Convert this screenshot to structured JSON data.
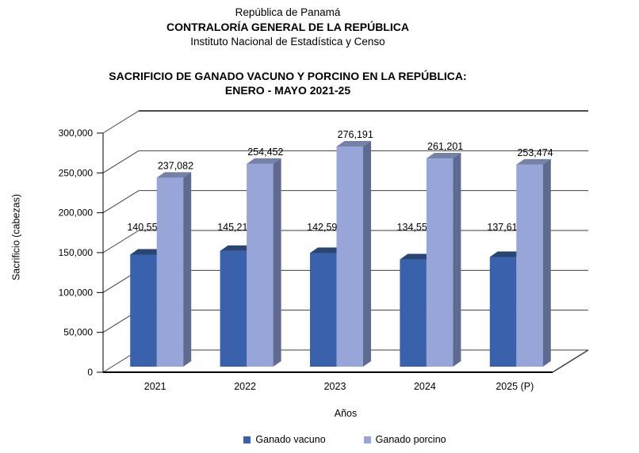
{
  "header": {
    "line1": "República de Panamá",
    "line2": "CONTRALORÍA GENERAL DE LA REPÚBLICA",
    "line3": "Instituto Nacional de Estadística y Censo"
  },
  "chart_data": {
    "type": "bar",
    "variant": "3d-column",
    "title": "SACRIFICIO DE GANADO VACUNO Y PORCINO EN LA REPÚBLICA: ENERO - MAYO 2021-25",
    "title_lines": [
      "SACRIFICIO DE GANADO VACUNO Y PORCINO EN LA REPÚBLICA:",
      "ENERO - MAYO 2021-25"
    ],
    "categories": [
      "2021",
      "2022",
      "2023",
      "2024",
      "2025 (P)"
    ],
    "series": [
      {
        "name": "Ganado vacuno",
        "values": [
          140558,
          145211,
          142591,
          134553,
          137611
        ],
        "value_labels": [
          "140,558",
          "145,211",
          "142,591",
          "134,553",
          "137,611"
        ],
        "color": "#3A62AC",
        "top_color": "#2B4573",
        "side_color": "#2A426F"
      },
      {
        "name": "Ganado porcino",
        "values": [
          237082,
          254452,
          276191,
          261201,
          253474
        ],
        "value_labels": [
          "237,082",
          "254,452",
          "276,191",
          "261,201",
          "253,474"
        ],
        "color": "#98A5D9",
        "top_color": "#7681A6",
        "side_color": "#5E6A90"
      }
    ],
    "xlabel": "Años",
    "ylabel": "Sacrificio (cabezas)",
    "ylim": [
      0,
      300000
    ],
    "ytick_step": 50000,
    "ytick_labels": [
      "0",
      "50,000",
      "100,000",
      "150,000",
      "200,000",
      "250,000",
      "300,000"
    ],
    "grid": true,
    "legend_position": "bottom",
    "colors": {
      "gridline": "#3f3f3f",
      "axis": "#000000",
      "text": "#000000"
    }
  }
}
